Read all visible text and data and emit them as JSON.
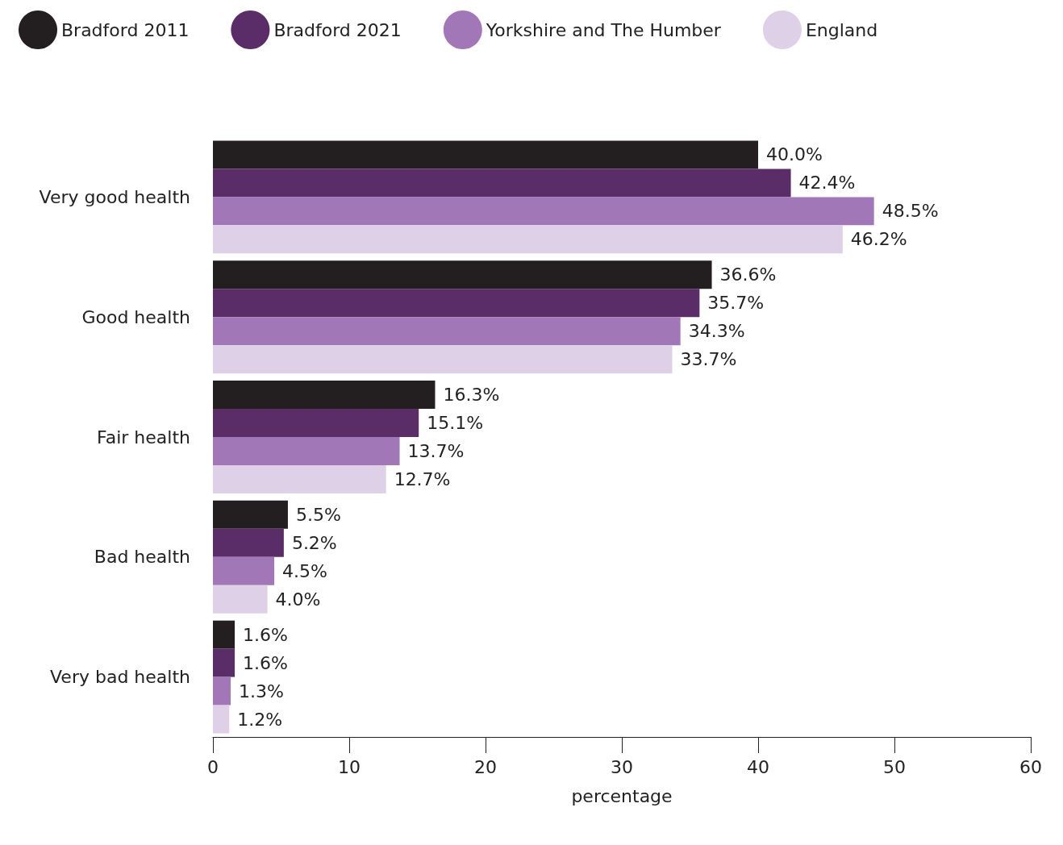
{
  "chart_data": {
    "type": "bar",
    "orientation": "horizontal",
    "xlabel": "percentage",
    "categories": [
      "Very good health",
      "Good health",
      "Fair health",
      "Bad health",
      "Very bad health"
    ],
    "series": [
      {
        "name": "Bradford 2011",
        "color": "#231f20",
        "values": [
          40.0,
          36.6,
          16.3,
          5.5,
          1.6
        ],
        "value_labels": [
          "40.0%",
          "36.6%",
          "16.3%",
          "5.5%",
          "1.6%"
        ]
      },
      {
        "name": "Bradford 2021",
        "color": "#5a2d68",
        "values": [
          42.4,
          35.7,
          15.1,
          5.2,
          1.6
        ],
        "value_labels": [
          "42.4%",
          "35.7%",
          "15.1%",
          "5.2%",
          "1.6%"
        ]
      },
      {
        "name": "Yorkshire and The Humber",
        "color": "#a277b7",
        "values": [
          48.5,
          34.3,
          13.7,
          4.5,
          1.3
        ],
        "value_labels": [
          "48.5%",
          "34.3%",
          "13.7%",
          "4.5%",
          "1.3%"
        ]
      },
      {
        "name": "England",
        "color": "#ded0e6",
        "values": [
          46.2,
          33.7,
          12.7,
          4.0,
          1.2
        ],
        "value_labels": [
          "46.2%",
          "33.7%",
          "12.7%",
          "4.0%",
          "1.2%"
        ]
      }
    ],
    "xlim": [
      0,
      60
    ],
    "xticks": [
      0,
      10,
      20,
      30,
      40,
      50,
      60
    ],
    "grid": false,
    "legend": "top left"
  }
}
